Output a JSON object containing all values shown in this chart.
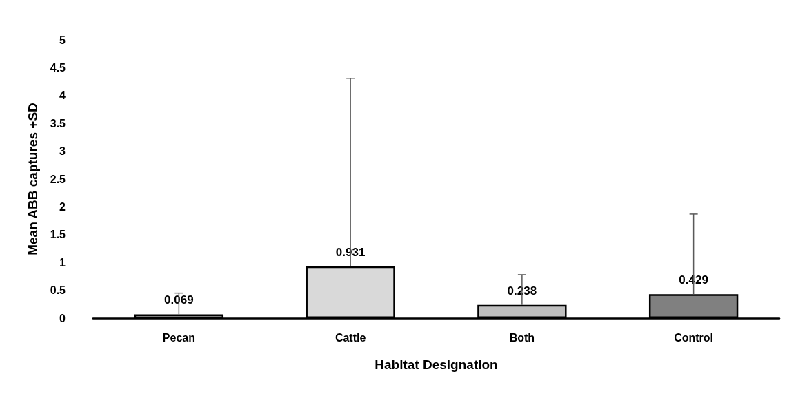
{
  "chart_data": {
    "type": "bar",
    "categories": [
      "Pecan",
      "Cattle",
      "Both",
      "Control"
    ],
    "values": [
      0.069,
      0.931,
      0.238,
      0.429
    ],
    "colors": [
      "#ffffff",
      "#d9d9d9",
      "#bfbfbf",
      "#808080"
    ],
    "errors": [
      [
        0.069,
        0.45
      ],
      [
        0.931,
        4.31
      ],
      [
        0.238,
        0.78
      ],
      [
        0.429,
        1.87
      ]
    ],
    "data_labels": true,
    "xlabel": "Habitat Designation",
    "ylabel": "Mean ABB captures +SD",
    "ylim": [
      0,
      5
    ],
    "yticks": [
      0,
      0.5,
      1,
      1.5,
      2,
      2.5,
      3,
      3.5,
      4,
      4.5,
      5
    ],
    "grid": false
  }
}
